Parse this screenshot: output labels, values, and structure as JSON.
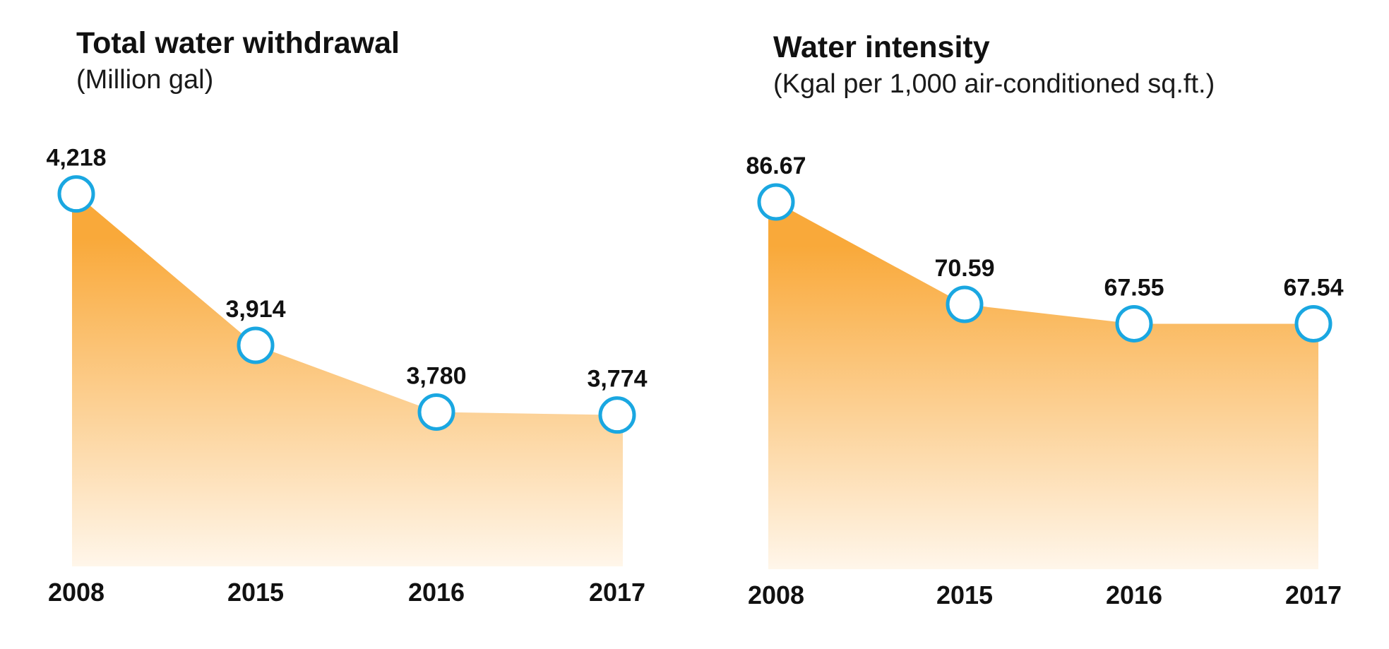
{
  "chart_data": [
    {
      "type": "area",
      "title": "Total water withdrawal",
      "subtitle": "(Million gal)",
      "categories": [
        "2008",
        "2015",
        "2016",
        "2017"
      ],
      "values": [
        4218,
        3914,
        3780,
        3774
      ],
      "labels": [
        "4,218",
        "3,914",
        "3,780",
        "3,774"
      ],
      "ylim": [
        3470,
        4270
      ]
    },
    {
      "type": "area",
      "title": "Water intensity",
      "subtitle": "(Kgal per 1,000 air-conditioned sq.ft.)",
      "categories": [
        "2008",
        "2015",
        "2016",
        "2017"
      ],
      "values": [
        86.67,
        70.59,
        67.55,
        67.54
      ],
      "labels": [
        "86.67",
        "70.59",
        "67.55",
        "67.54"
      ],
      "ylim": [
        29,
        92
      ]
    }
  ],
  "colors": {
    "fill_top": "#f9a93a",
    "fill_bottom": "#fff6ea",
    "marker": "#1aa7e1"
  }
}
